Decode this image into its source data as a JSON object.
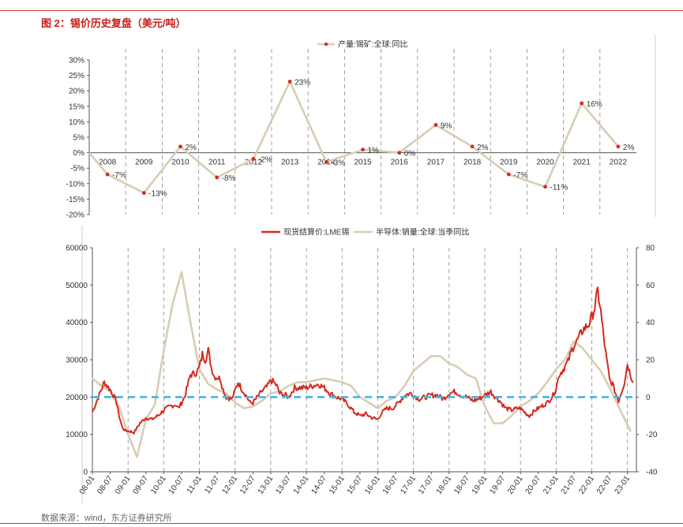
{
  "page": {
    "title": "图 2：锡价历史复盘（美元/吨）",
    "source": "数据来源：wind，东方证券研究所"
  },
  "colors": {
    "accent_red": "#d42a1e",
    "beige": "#d8ccb4",
    "dashed_blue": "#4ab4de"
  },
  "chart_data": [
    {
      "type": "line",
      "legend": [
        "产量:锡矿:全球:同比"
      ],
      "legend_position": "top-center",
      "categories": [
        "2008",
        "2009",
        "2010",
        "2011",
        "2012",
        "2013",
        "2014",
        "2015",
        "2016",
        "2017",
        "2018",
        "2019",
        "2020",
        "2021",
        "2022"
      ],
      "series": [
        {
          "name": "产量:锡矿:全球:同比",
          "values": [
            -7,
            -13,
            2,
            -8,
            -2,
            23,
            -3,
            1,
            0,
            9,
            2,
            -7,
            -11,
            16,
            2
          ],
          "data_labels": [
            "-7%",
            "-13%",
            "2%",
            "-8%",
            "-2%",
            "23%",
            "-3%",
            "1%",
            "0%",
            "9%",
            "2%",
            "-7%",
            "-11%",
            "16%",
            "2%"
          ]
        }
      ],
      "ylim": [
        -20,
        30
      ],
      "yticks": [
        "30%",
        "25%",
        "20%",
        "15%",
        "10%",
        "5%",
        "0%",
        "-5%",
        "-10%",
        "-15%",
        "-20%"
      ],
      "grid": "vertical dashed separators between years"
    },
    {
      "type": "line",
      "legend_position": "top-center",
      "x_ticks": [
        "08-01",
        "08-07",
        "09-01",
        "09-07",
        "10-01",
        "10-07",
        "11-01",
        "11-07",
        "12-01",
        "12-07",
        "13-01",
        "13-07",
        "14-01",
        "14-07",
        "15-01",
        "15-07",
        "16-01",
        "16-07",
        "17-01",
        "17-07",
        "18-01",
        "18-07",
        "19-01",
        "19-07",
        "20-01",
        "20-07",
        "21-01",
        "21-07",
        "22-01",
        "22-07",
        "23-01"
      ],
      "y_left": {
        "lim": [
          0,
          60000
        ],
        "ticks": [
          "0",
          "10000",
          "20000",
          "30000",
          "40000",
          "50000",
          "60000"
        ]
      },
      "y_right": {
        "lim": [
          -40,
          80
        ],
        "ticks": [
          "-40",
          "-20",
          "0",
          "20",
          "40",
          "60",
          "80"
        ]
      },
      "reference_line": {
        "axis": "left",
        "value": 20000,
        "style": "dashed",
        "color": "#4ab4de"
      },
      "series": [
        {
          "name": "现货结算价:LME锡",
          "axis": "left",
          "color": "#d42a1e",
          "points": [
            [
              "2008-01",
              16000
            ],
            [
              "2008-04",
              22000
            ],
            [
              "2008-05",
              24000
            ],
            [
              "2008-07",
              22000
            ],
            [
              "2008-09",
              19000
            ],
            [
              "2008-10",
              15000
            ],
            [
              "2008-11",
              12000
            ],
            [
              "2008-12",
              11000
            ],
            [
              "2009-01",
              11000
            ],
            [
              "2009-03",
              10500
            ],
            [
              "2009-05",
              13000
            ],
            [
              "2009-07",
              14500
            ],
            [
              "2009-09",
              14000
            ],
            [
              "2009-11",
              15000
            ],
            [
              "2010-01",
              16500
            ],
            [
              "2010-03",
              17500
            ],
            [
              "2010-05",
              18000
            ],
            [
              "2010-06",
              17000
            ],
            [
              "2010-08",
              20000
            ],
            [
              "2010-10",
              26000
            ],
            [
              "2010-12",
              26500
            ],
            [
              "2011-01",
              28000
            ],
            [
              "2011-02",
              31500
            ],
            [
              "2011-03",
              30000
            ],
            [
              "2011-04",
              32500
            ],
            [
              "2011-05",
              28000
            ],
            [
              "2011-06",
              25500
            ],
            [
              "2011-08",
              25000
            ],
            [
              "2011-09",
              22000
            ],
            [
              "2011-10",
              20000
            ],
            [
              "2011-12",
              19500
            ],
            [
              "2012-02",
              24000
            ],
            [
              "2012-03",
              22500
            ],
            [
              "2012-05",
              20000
            ],
            [
              "2012-06",
              18500
            ],
            [
              "2012-07",
              18500
            ],
            [
              "2012-09",
              20500
            ],
            [
              "2012-10",
              21500
            ],
            [
              "2012-12",
              23000
            ],
            [
              "2013-01",
              24500
            ],
            [
              "2013-02",
              24000
            ],
            [
              "2013-03",
              23000
            ],
            [
              "2013-04",
              21000
            ],
            [
              "2013-06",
              20500
            ],
            [
              "2013-07",
              20000
            ],
            [
              "2013-09",
              22500
            ],
            [
              "2013-11",
              22500
            ],
            [
              "2014-01",
              22500
            ],
            [
              "2014-03",
              23000
            ],
            [
              "2014-05",
              23500
            ],
            [
              "2014-07",
              22500
            ],
            [
              "2014-09",
              21000
            ],
            [
              "2014-11",
              20000
            ],
            [
              "2015-01",
              19500
            ],
            [
              "2015-03",
              18000
            ],
            [
              "2015-05",
              16000
            ],
            [
              "2015-07",
              15000
            ],
            [
              "2015-09",
              15500
            ],
            [
              "2015-11",
              14500
            ],
            [
              "2016-01",
              14000
            ],
            [
              "2016-02",
              15500
            ],
            [
              "2016-04",
              17000
            ],
            [
              "2016-06",
              17000
            ],
            [
              "2016-08",
              18500
            ],
            [
              "2016-10",
              20500
            ],
            [
              "2016-12",
              21000
            ],
            [
              "2017-01",
              20500
            ],
            [
              "2017-03",
              19500
            ],
            [
              "2017-05",
              20000
            ],
            [
              "2017-07",
              20500
            ],
            [
              "2017-09",
              20500
            ],
            [
              "2017-11",
              19500
            ],
            [
              "2018-01",
              21000
            ],
            [
              "2018-03",
              21500
            ],
            [
              "2018-05",
              20500
            ],
            [
              "2018-07",
              20000
            ],
            [
              "2018-09",
              19000
            ],
            [
              "2018-11",
              19500
            ],
            [
              "2019-01",
              20500
            ],
            [
              "2019-03",
              21500
            ],
            [
              "2019-04",
              20500
            ],
            [
              "2019-06",
              19000
            ],
            [
              "2019-08",
              17000
            ],
            [
              "2019-10",
              16500
            ],
            [
              "2019-12",
              17000
            ],
            [
              "2020-01",
              17000
            ],
            [
              "2020-03",
              15500
            ],
            [
              "2020-04",
              15000
            ],
            [
              "2020-06",
              16500
            ],
            [
              "2020-08",
              17500
            ],
            [
              "2020-10",
              18500
            ],
            [
              "2020-12",
              20500
            ],
            [
              "2021-01",
              22500
            ],
            [
              "2021-02",
              26000
            ],
            [
              "2021-03",
              27000
            ],
            [
              "2021-05",
              29500
            ],
            [
              "2021-06",
              32000
            ],
            [
              "2021-07",
              34000
            ],
            [
              "2021-08",
              35000
            ],
            [
              "2021-10",
              38000
            ],
            [
              "2021-12",
              39500
            ],
            [
              "2022-01",
              41500
            ],
            [
              "2022-02",
              44000
            ],
            [
              "2022-03",
              48500
            ],
            [
              "2022-04",
              43000
            ],
            [
              "2022-05",
              36000
            ],
            [
              "2022-06",
              30000
            ],
            [
              "2022-07",
              24500
            ],
            [
              "2022-08",
              23500
            ],
            [
              "2022-09",
              21000
            ],
            [
              "2022-10",
              19000
            ],
            [
              "2022-11",
              21500
            ],
            [
              "2022-12",
              24000
            ],
            [
              "2023-01",
              29000
            ],
            [
              "2023-02",
              26000
            ],
            [
              "2023-03",
              24000
            ]
          ]
        },
        {
          "name": "半导体:销量:全球:当季同比",
          "axis": "right",
          "color": "#d8ccb4",
          "points": [
            [
              "2008-01",
              10
            ],
            [
              "2008-04",
              6
            ],
            [
              "2008-07",
              3
            ],
            [
              "2008-10",
              -5
            ],
            [
              "2009-01",
              -20
            ],
            [
              "2009-04",
              -32
            ],
            [
              "2009-07",
              -12
            ],
            [
              "2009-10",
              -4
            ],
            [
              "2010-01",
              25
            ],
            [
              "2010-04",
              50
            ],
            [
              "2010-07",
              67
            ],
            [
              "2010-10",
              40
            ],
            [
              "2011-01",
              15
            ],
            [
              "2011-04",
              7
            ],
            [
              "2011-07",
              4
            ],
            [
              "2011-10",
              2
            ],
            [
              "2012-01",
              -3
            ],
            [
              "2012-04",
              -6
            ],
            [
              "2012-07",
              -5
            ],
            [
              "2012-10",
              -2
            ],
            [
              "2013-01",
              2
            ],
            [
              "2013-04",
              3
            ],
            [
              "2013-07",
              6
            ],
            [
              "2013-10",
              8
            ],
            [
              "2014-01",
              8
            ],
            [
              "2014-04",
              9
            ],
            [
              "2014-07",
              10
            ],
            [
              "2014-10",
              9
            ],
            [
              "2015-01",
              8
            ],
            [
              "2015-04",
              6
            ],
            [
              "2015-07",
              0
            ],
            [
              "2015-10",
              -3
            ],
            [
              "2016-01",
              -6
            ],
            [
              "2016-04",
              -2
            ],
            [
              "2016-07",
              0
            ],
            [
              "2016-10",
              6
            ],
            [
              "2017-01",
              14
            ],
            [
              "2017-04",
              18
            ],
            [
              "2017-07",
              22
            ],
            [
              "2017-10",
              22
            ],
            [
              "2018-01",
              18
            ],
            [
              "2018-04",
              16
            ],
            [
              "2018-07",
              12
            ],
            [
              "2018-10",
              10
            ],
            [
              "2019-01",
              -5
            ],
            [
              "2019-04",
              -14
            ],
            [
              "2019-07",
              -14
            ],
            [
              "2019-10",
              -10
            ],
            [
              "2020-01",
              -5
            ],
            [
              "2020-04",
              -2
            ],
            [
              "2020-07",
              2
            ],
            [
              "2020-10",
              8
            ],
            [
              "2021-01",
              15
            ],
            [
              "2021-04",
              20
            ],
            [
              "2021-07",
              30
            ],
            [
              "2021-10",
              26
            ],
            [
              "2022-01",
              20
            ],
            [
              "2022-04",
              14
            ],
            [
              "2022-07",
              5
            ],
            [
              "2022-10",
              -5
            ],
            [
              "2023-01",
              -15
            ],
            [
              "2023-02",
              -18
            ]
          ]
        }
      ]
    }
  ]
}
